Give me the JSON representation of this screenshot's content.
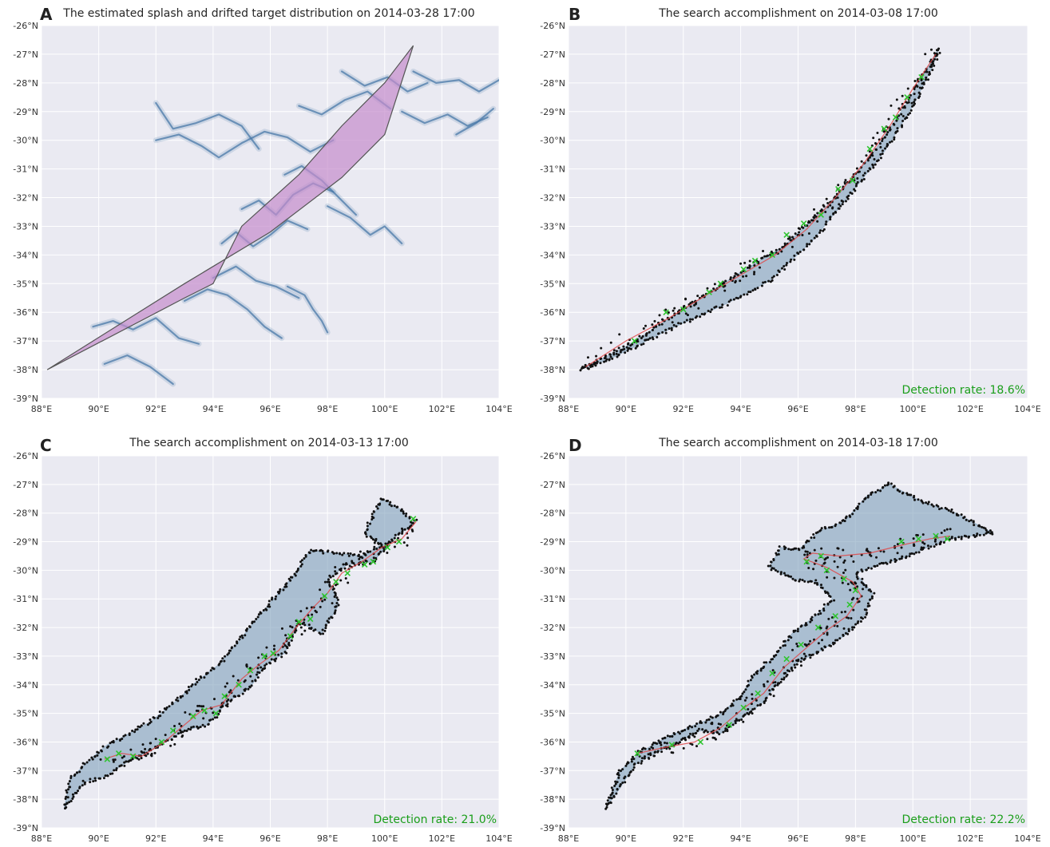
{
  "figure": {
    "colors": {
      "plot_bg": "#eaeaf2",
      "grid": "#ffffff",
      "drift": "#4a78a8",
      "swath": "#7ea0ba",
      "splash_fill": "#c58ccc",
      "splash_edge": "#555555",
      "search_points": "#111111",
      "search_path": "#e04848",
      "detections": "#2ec42e",
      "detection_text": "#1a9e1a"
    }
  },
  "chart_data": [
    {
      "id": "A",
      "type": "scatter",
      "panel_letter": "A",
      "title": "The estimated splash and drifted target distribution on 2014-03-28 17:00",
      "xlabel": "",
      "ylabel": "",
      "xlim": [
        88,
        104
      ],
      "ylim": [
        -39,
        -26
      ],
      "x_ticks": [
        88,
        90,
        92,
        94,
        96,
        98,
        100,
        102,
        104
      ],
      "x_tick_labels": [
        "88°E",
        "90°E",
        "92°E",
        "94°E",
        "96°E",
        "98°E",
        "100°E",
        "102°E",
        "104°E"
      ],
      "y_ticks": [
        -26,
        -27,
        -28,
        -29,
        -30,
        -31,
        -32,
        -33,
        -34,
        -35,
        -36,
        -37,
        -38,
        -39
      ],
      "y_tick_labels": [
        "-26°N",
        "-27°N",
        "-28°N",
        "-29°N",
        "-30°N",
        "-31°N",
        "-32°N",
        "-33°N",
        "-34°N",
        "-35°N",
        "-36°N",
        "-37°N",
        "-38°N",
        "-39°N"
      ],
      "grid": true,
      "splash_zone_polygon": {
        "lon": [
          88.2,
          93.0,
          96.0,
          98.5,
          100.0,
          101.0,
          100.0,
          98.5,
          97.0,
          95.0,
          94.0,
          93.0,
          88.2
        ],
        "lat": [
          -38.0,
          -35.0,
          -33.2,
          -31.3,
          -29.8,
          -26.7,
          -28.0,
          -29.5,
          -31.2,
          -33.0,
          -35.0,
          -35.5,
          -38.0
        ]
      },
      "drifted_distribution": {
        "streaks": [
          {
            "lon": [
              89.8,
              90.5,
              91.2,
              92.0,
              92.8,
              93.5
            ],
            "lat": [
              -36.5,
              -36.3,
              -36.6,
              -36.2,
              -36.9,
              -37.1
            ]
          },
          {
            "lon": [
              90.2,
              91.0,
              91.8,
              92.6
            ],
            "lat": [
              -37.8,
              -37.5,
              -37.9,
              -38.5
            ]
          },
          {
            "lon": [
              93.0,
              93.8,
              94.5,
              95.2,
              95.8,
              96.4
            ],
            "lat": [
              -35.6,
              -35.2,
              -35.4,
              -35.9,
              -36.5,
              -36.9
            ]
          },
          {
            "lon": [
              94.0,
              94.8,
              95.5,
              96.2,
              97.0
            ],
            "lat": [
              -34.8,
              -34.4,
              -34.9,
              -35.1,
              -35.5
            ]
          },
          {
            "lon": [
              94.3,
              94.8,
              95.4,
              96.0,
              96.6,
              97.3
            ],
            "lat": [
              -33.6,
              -33.2,
              -33.7,
              -33.3,
              -32.8,
              -33.1
            ]
          },
          {
            "lon": [
              95.0,
              95.6,
              96.2,
              96.8,
              97.5,
              98.2
            ],
            "lat": [
              -32.4,
              -32.1,
              -32.6,
              -31.9,
              -31.5,
              -31.8
            ]
          },
          {
            "lon": [
              96.5,
              97.1,
              97.8,
              98.4,
              99.0
            ],
            "lat": [
              -31.2,
              -30.9,
              -31.4,
              -32.0,
              -32.6
            ]
          },
          {
            "lon": [
              96.6,
              97.2,
              97.5,
              97.8,
              98.0
            ],
            "lat": [
              -35.1,
              -35.4,
              -35.9,
              -36.3,
              -36.7
            ]
          },
          {
            "lon": [
              98.0,
              98.8,
              99.5,
              100.0,
              100.6
            ],
            "lat": [
              -32.3,
              -32.7,
              -33.3,
              -33.0,
              -33.6
            ]
          },
          {
            "lon": [
              92.0,
              92.6,
              93.4,
              94.2,
              95.0,
              95.6
            ],
            "lat": [
              -28.7,
              -29.6,
              -29.4,
              -29.1,
              -29.5,
              -30.3
            ]
          },
          {
            "lon": [
              92.0,
              92.8,
              93.6,
              94.2,
              95.0,
              95.8,
              96.6,
              97.4,
              98.2
            ],
            "lat": [
              -30.0,
              -29.8,
              -30.2,
              -30.6,
              -30.1,
              -29.7,
              -29.9,
              -30.4,
              -30.0
            ]
          },
          {
            "lon": [
              97.0,
              97.8,
              98.6,
              99.4,
              100.2
            ],
            "lat": [
              -28.8,
              -29.1,
              -28.6,
              -28.3,
              -28.9
            ]
          },
          {
            "lon": [
              98.5,
              99.3,
              100.1,
              100.8,
              101.5
            ],
            "lat": [
              -27.6,
              -28.1,
              -27.8,
              -28.3,
              -28.0
            ]
          },
          {
            "lon": [
              101.0,
              101.8,
              102.6,
              103.3,
              104.0
            ],
            "lat": [
              -27.6,
              -28.0,
              -27.9,
              -28.3,
              -27.9
            ]
          },
          {
            "lon": [
              100.6,
              101.4,
              102.2,
              102.9,
              103.6
            ],
            "lat": [
              -29.0,
              -29.4,
              -29.1,
              -29.5,
              -29.2
            ]
          },
          {
            "lon": [
              102.5,
              103.2,
              103.8
            ],
            "lat": [
              -29.8,
              -29.4,
              -28.9
            ]
          }
        ]
      }
    },
    {
      "id": "B",
      "type": "scatter",
      "panel_letter": "B",
      "title": "The search accomplishment on 2014-03-08 17:00",
      "xlabel": "",
      "ylabel": "",
      "xlim": [
        88,
        104
      ],
      "ylim": [
        -39,
        -26
      ],
      "x_ticks": [
        88,
        90,
        92,
        94,
        96,
        98,
        100,
        102,
        104
      ],
      "x_tick_labels": [
        "88°E",
        "90°E",
        "92°E",
        "94°E",
        "96°E",
        "98°E",
        "100°E",
        "102°E",
        "104°E"
      ],
      "y_ticks": [
        -26,
        -27,
        -28,
        -29,
        -30,
        -31,
        -32,
        -33,
        -34,
        -35,
        -36,
        -37,
        -38,
        -39
      ],
      "y_tick_labels": [
        "-26°N",
        "-27°N",
        "-28°N",
        "-29°N",
        "-30°N",
        "-31°N",
        "-32°N",
        "-33°N",
        "-34°N",
        "-35°N",
        "-36°N",
        "-37°N",
        "-38°N",
        "-39°N"
      ],
      "grid": true,
      "detection_rate": "Detection rate: 18.6%",
      "search_swath": {
        "lon": [
          88.4,
          90.0,
          92.0,
          94.0,
          95.5,
          97.0,
          98.5,
          99.8,
          100.9,
          100.7,
          100.0,
          99.0,
          97.8,
          96.5,
          95.0,
          93.5,
          91.5,
          89.5,
          88.4
        ],
        "lat": [
          -38.0,
          -37.2,
          -35.9,
          -34.6,
          -33.7,
          -32.3,
          -30.6,
          -28.7,
          -26.8,
          -27.4,
          -28.8,
          -30.4,
          -31.9,
          -33.5,
          -34.9,
          -35.7,
          -36.6,
          -37.6,
          -38.0
        ]
      },
      "search_path": {
        "lon": [
          88.6,
          90.0,
          91.5,
          92.8,
          94.0,
          95.2,
          96.3,
          97.3,
          98.3,
          99.2,
          100.0,
          100.8
        ],
        "lat": [
          -37.9,
          -37.0,
          -36.2,
          -35.4,
          -34.7,
          -34.0,
          -33.1,
          -32.0,
          -30.8,
          -29.5,
          -28.2,
          -27.0
        ]
      },
      "detections": {
        "lon": [
          90.3,
          91.4,
          92.0,
          92.9,
          93.3,
          94.1,
          94.5,
          95.1,
          95.6,
          96.2,
          96.8,
          97.4,
          97.9,
          98.5,
          99.0,
          99.4,
          99.8,
          100.3
        ],
        "lat": [
          -37.0,
          -36.0,
          -35.9,
          -35.3,
          -35.0,
          -34.5,
          -34.2,
          -34.0,
          -33.3,
          -32.9,
          -32.6,
          -31.7,
          -31.4,
          -30.3,
          -29.6,
          -29.2,
          -28.5,
          -27.8
        ]
      },
      "points_per_unit": 12
    },
    {
      "id": "C",
      "type": "scatter",
      "panel_letter": "C",
      "title": "The search accomplishment on 2014-03-13 17:00",
      "xlabel": "",
      "ylabel": "",
      "xlim": [
        88,
        104
      ],
      "ylim": [
        -39,
        -26
      ],
      "x_ticks": [
        88,
        90,
        92,
        94,
        96,
        98,
        100,
        102,
        104
      ],
      "x_tick_labels": [
        "88°E",
        "90°E",
        "92°E",
        "94°E",
        "96°E",
        "98°E",
        "100°E",
        "102°E",
        "104°E"
      ],
      "y_ticks": [
        -26,
        -27,
        -28,
        -29,
        -30,
        -31,
        -32,
        -33,
        -34,
        -35,
        -36,
        -37,
        -38,
        -39
      ],
      "y_tick_labels": [
        "-26°N",
        "-27°N",
        "-28°N",
        "-29°N",
        "-30°N",
        "-31°N",
        "-32°N",
        "-33°N",
        "-34°N",
        "-35°N",
        "-36°N",
        "-37°N",
        "-38°N",
        "-39°N"
      ],
      "grid": true,
      "detection_rate": "Detection rate: 21.0%",
      "search_swath": {
        "lon": [
          88.8,
          89.5,
          90.2,
          91.0,
          92.0,
          93.0,
          93.8,
          94.5,
          95.3,
          95.8,
          96.5,
          97.0,
          97.8,
          98.4,
          98.0,
          98.7,
          99.6,
          100.4,
          101.0,
          100.6,
          99.9,
          99.3,
          99.9,
          99.2,
          98.2,
          97.4,
          96.8,
          96.2,
          95.6,
          94.8,
          94.2,
          93.4,
          92.8,
          91.8,
          90.9,
          90.3,
          89.7,
          89.0,
          88.8
        ],
        "lat": [
          -38.3,
          -37.4,
          -37.2,
          -36.7,
          -36.2,
          -35.6,
          -35.4,
          -34.6,
          -34.1,
          -33.3,
          -32.9,
          -31.8,
          -32.2,
          -31.2,
          -30.3,
          -29.8,
          -29.7,
          -28.8,
          -28.4,
          -27.9,
          -27.5,
          -28.7,
          -29.1,
          -29.5,
          -29.4,
          -29.3,
          -30.2,
          -30.9,
          -31.6,
          -32.6,
          -33.3,
          -33.9,
          -34.5,
          -35.3,
          -35.8,
          -36.1,
          -36.6,
          -37.3,
          -38.3
        ]
      },
      "search_path": {
        "lon": [
          90.2,
          90.8,
          91.5,
          92.3,
          93.0,
          93.6,
          94.3,
          95.0,
          95.6,
          96.3,
          96.9,
          97.5,
          98.0,
          98.5,
          99.2,
          99.9,
          100.6,
          101.1
        ],
        "lat": [
          -36.6,
          -36.4,
          -36.5,
          -36.0,
          -35.4,
          -34.9,
          -34.7,
          -33.8,
          -33.3,
          -32.8,
          -32.0,
          -31.3,
          -30.8,
          -30.1,
          -29.7,
          -29.2,
          -28.9,
          -28.3
        ]
      },
      "detections": {
        "lon": [
          90.3,
          90.7,
          91.2,
          92.2,
          92.6,
          93.3,
          93.7,
          94.1,
          94.4,
          94.9,
          95.3,
          95.8,
          96.1,
          96.7,
          97.0,
          97.4,
          97.9,
          98.3,
          98.7,
          99.3,
          99.6,
          100.1,
          100.5,
          101.0
        ],
        "lat": [
          -36.6,
          -36.4,
          -36.5,
          -36.0,
          -35.6,
          -35.1,
          -34.9,
          -35.0,
          -34.4,
          -34.0,
          -33.5,
          -33.0,
          -32.9,
          -32.3,
          -31.8,
          -31.7,
          -30.9,
          -30.4,
          -30.1,
          -29.8,
          -29.7,
          -29.2,
          -29.0,
          -28.2
        ]
      },
      "points_per_unit": 14
    },
    {
      "id": "D",
      "type": "scatter",
      "panel_letter": "D",
      "title": "The search accomplishment on 2014-03-18 17:00",
      "xlabel": "",
      "ylabel": "",
      "xlim": [
        88,
        104
      ],
      "ylim": [
        -39,
        -26
      ],
      "x_ticks": [
        88,
        90,
        92,
        94,
        96,
        98,
        100,
        102,
        104
      ],
      "x_tick_labels": [
        "88°E",
        "90°E",
        "92°E",
        "94°E",
        "96°E",
        "98°E",
        "100°E",
        "102°E",
        "104°E"
      ],
      "y_ticks": [
        -26,
        -27,
        -28,
        -29,
        -30,
        -31,
        -32,
        -33,
        -34,
        -35,
        -36,
        -37,
        -38,
        -39
      ],
      "y_tick_labels": [
        "-26°N",
        "-27°N",
        "-28°N",
        "-29°N",
        "-30°N",
        "-31°N",
        "-32°N",
        "-33°N",
        "-34°N",
        "-35°N",
        "-36°N",
        "-37°N",
        "-38°N",
        "-39°N"
      ],
      "grid": true,
      "detection_rate": "Detection rate: 22.2%",
      "search_swath": {
        "lon": [
          89.3,
          89.8,
          90.3,
          91.0,
          91.8,
          92.6,
          93.3,
          94.0,
          94.8,
          95.3,
          96.0,
          96.8,
          97.6,
          98.3,
          98.6,
          98.0,
          98.8,
          99.6,
          100.5,
          101.3,
          102.0,
          102.8,
          101.5,
          100.3,
          99.2,
          98.4,
          97.6,
          96.8,
          96.0,
          95.4,
          95.0,
          95.8,
          96.6,
          97.2,
          96.6,
          95.8,
          95.2,
          94.5,
          94.0,
          93.2,
          92.4,
          91.5,
          90.6,
          89.8,
          89.3
        ],
        "lat": [
          -38.3,
          -37.6,
          -36.8,
          -36.4,
          -36.0,
          -35.6,
          -35.7,
          -35.2,
          -34.6,
          -33.9,
          -33.2,
          -32.8,
          -32.3,
          -31.6,
          -30.8,
          -30.1,
          -29.8,
          -29.6,
          -29.2,
          -28.9,
          -28.8,
          -28.7,
          -28.0,
          -27.6,
          -27.0,
          -27.4,
          -28.3,
          -28.6,
          -29.3,
          -29.2,
          -29.9,
          -30.3,
          -30.4,
          -31.0,
          -31.6,
          -32.2,
          -33.0,
          -33.6,
          -34.4,
          -35.1,
          -35.4,
          -35.8,
          -36.3,
          -37.0,
          -38.3
        ]
      },
      "search_path": {
        "lon": [
          90.4,
          91.3,
          92.4,
          93.3,
          94.0,
          94.8,
          95.5,
          96.3,
          97.0,
          97.7,
          98.2,
          97.9,
          97.0,
          96.2,
          96.5,
          97.4,
          98.5,
          99.7,
          100.6,
          101.3
        ],
        "lat": [
          -36.4,
          -36.2,
          -36.0,
          -35.5,
          -34.9,
          -34.3,
          -33.4,
          -32.7,
          -32.1,
          -31.6,
          -30.9,
          -30.4,
          -29.9,
          -29.6,
          -29.4,
          -29.5,
          -29.4,
          -29.1,
          -28.9,
          -28.8
        ]
      },
      "detections": {
        "lon": [
          90.4,
          91.6,
          92.6,
          93.6,
          94.1,
          94.6,
          95.1,
          95.6,
          96.1,
          96.7,
          97.3,
          97.8,
          98.0,
          97.6,
          97.0,
          96.3,
          96.8,
          99.6,
          100.2,
          100.8,
          101.2
        ],
        "lat": [
          -36.4,
          -36.1,
          -36.0,
          -35.4,
          -34.8,
          -34.3,
          -33.6,
          -33.1,
          -32.6,
          -32.0,
          -31.6,
          -31.2,
          -30.7,
          -30.3,
          -30.0,
          -29.7,
          -29.5,
          -29.0,
          -28.9,
          -28.8,
          -28.9
        ]
      },
      "points_per_unit": 14
    }
  ]
}
